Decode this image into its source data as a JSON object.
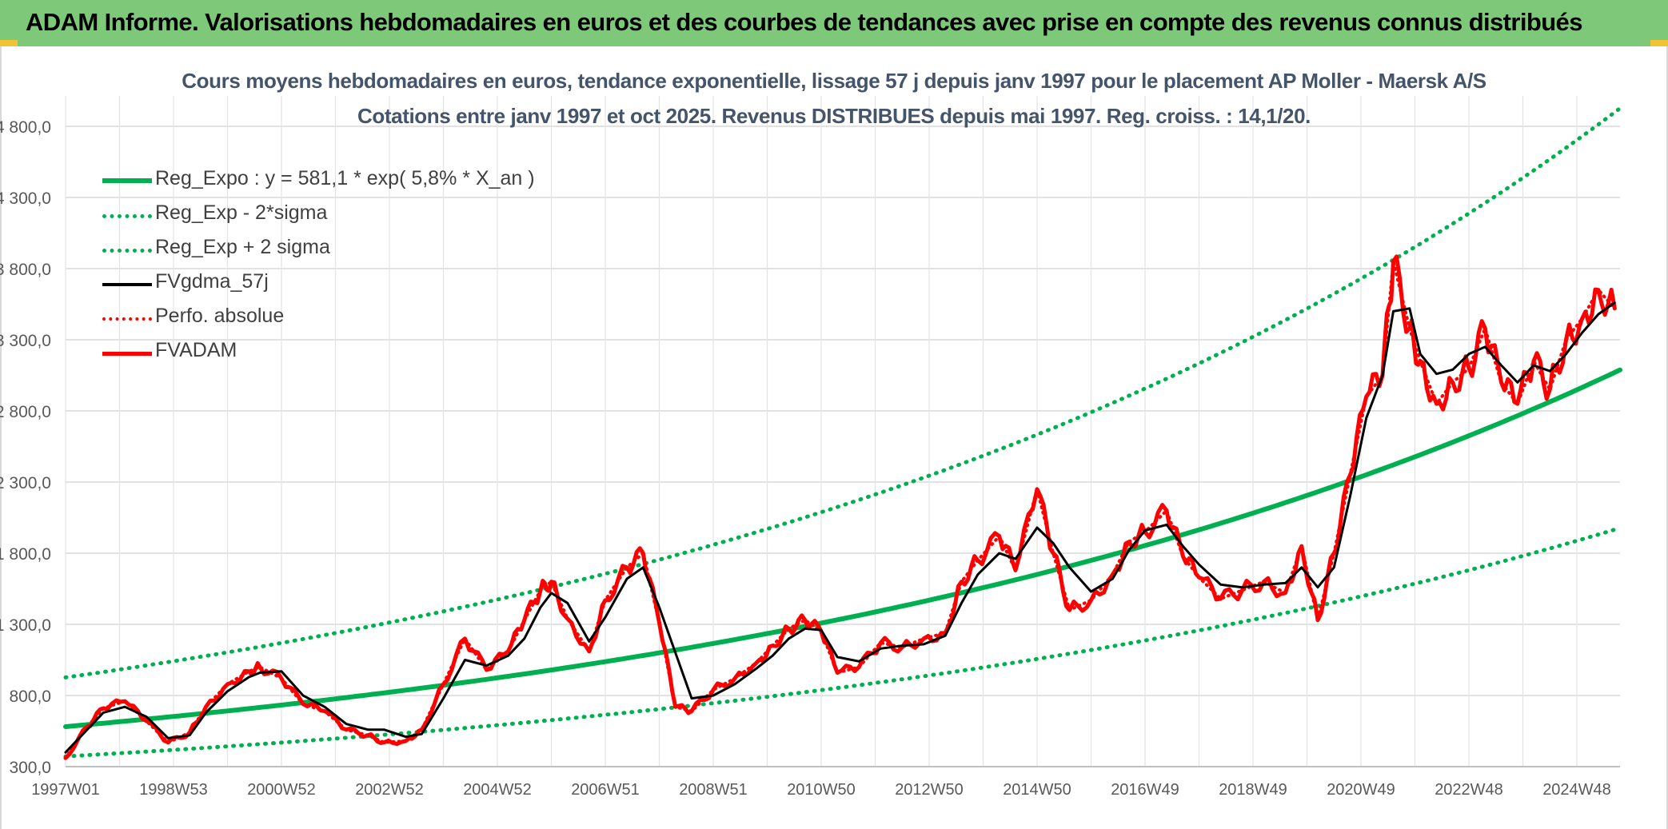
{
  "banner": {
    "title": "ADAM Informe. Valorisations hebdomadaires en euros et des courbes de tendances avec prise en compte des revenus connus distribués"
  },
  "colors": {
    "banner_bg": "#7dc979",
    "trend_green": "#00b050",
    "red": "#ff0000",
    "black": "#000000",
    "grid": "#d9d9d9",
    "title_text": "#44546a"
  },
  "chart_data": {
    "type": "line",
    "title": "Cours moyens hebdomadaires en euros, tendance exponentielle, lissage 57 j depuis janv 1997 pour le placement AP Moller - Maersk A/S",
    "subtitle": "Cotations entre janv 1997 et oct 2025. Revenus DISTRIBUES depuis mai 1997. Reg. croiss. : 14,1/20.",
    "xlabel": "",
    "ylabel": "",
    "xlim": [
      1997.0,
      2025.8
    ],
    "ylim": [
      300,
      5000
    ],
    "grid": true,
    "y_ticks": [
      300,
      800,
      1300,
      1800,
      2300,
      2800,
      3300,
      3800,
      4300,
      4800
    ],
    "y_tick_labels": [
      "300,0",
      "800,0",
      "1 300,0",
      "1 800,0",
      "2 300,0",
      "2 800,0",
      "3 300,0",
      "3 800,0",
      "4 300,0",
      "4 800,0"
    ],
    "x_ticks": [
      1997.0,
      1999.0,
      2001.0,
      2003.0,
      2005.0,
      2007.0,
      2009.0,
      2011.0,
      2013.0,
      2015.0,
      2017.0,
      2019.0,
      2021.0,
      2023.0,
      2025.0
    ],
    "x_tick_labels": [
      "1997W01",
      "1998W53",
      "2000W52",
      "2002W52",
      "2004W52",
      "2006W51",
      "2008W51",
      "2010W50",
      "2012W50",
      "2014W50",
      "2016W49",
      "2018W49",
      "2020W49",
      "2022W48",
      "2024W48"
    ],
    "legend_position": "top-left",
    "legend": [
      {
        "label": "Reg_Expo : y = 581,1 * exp( 5,8% *  X_an )",
        "color": "#00b050",
        "style": "solid",
        "width": 6
      },
      {
        "label": "Reg_Exp - 2*sigma",
        "color": "#00b050",
        "style": "dotted",
        "width": 4
      },
      {
        "label": "Reg_Exp + 2 sigma",
        "color": "#00b050",
        "style": "dotted",
        "width": 4
      },
      {
        "label": "FVgdma_57j",
        "color": "#000000",
        "style": "solid",
        "width": 4
      },
      {
        "label": "Perfo. absolue",
        "color": "#ff0000",
        "style": "dotted",
        "width": 4
      },
      {
        "label": "FVADAM",
        "color": "#ff0000",
        "style": "solid",
        "width": 5
      }
    ],
    "series": [
      {
        "name": "Reg_Expo",
        "model": "exponential",
        "a": 581.1,
        "b": 0.058,
        "x0": 1997.0,
        "x_end": 2025.8
      },
      {
        "name": "Reg_Exp - 2*sigma",
        "model": "exponential",
        "a": 372,
        "b": 0.058,
        "x0": 1997.0,
        "x_end": 2025.8
      },
      {
        "name": "Reg_Exp + 2 sigma",
        "model": "exponential",
        "a": 927,
        "b": 0.058,
        "x0": 1997.0,
        "x_end": 2025.8
      },
      {
        "name": "FVgdma_57j",
        "x": [
          1997.0,
          1997.4,
          1997.7,
          1998.1,
          1998.5,
          1998.9,
          1999.3,
          1999.6,
          2000.0,
          2000.4,
          2000.6,
          2001.0,
          2001.4,
          2001.8,
          2002.2,
          2002.6,
          2002.9,
          2003.3,
          2003.6,
          2004.0,
          2004.4,
          2004.8,
          2005.2,
          2005.5,
          2005.8,
          2006.0,
          2006.3,
          2006.7,
          2007.0,
          2007.4,
          2007.7,
          2008.0,
          2008.3,
          2008.6,
          2009.0,
          2009.4,
          2009.8,
          2010.1,
          2010.4,
          2010.7,
          2011.0,
          2011.3,
          2011.7,
          2012.1,
          2012.5,
          2012.9,
          2013.3,
          2013.6,
          2013.9,
          2014.3,
          2014.6,
          2015.0,
          2015.3,
          2015.6,
          2016.0,
          2016.4,
          2016.7,
          2017.0,
          2017.4,
          2017.7,
          2018.0,
          2018.4,
          2018.8,
          2019.2,
          2019.6,
          2019.9,
          2020.2,
          2020.5,
          2020.8,
          2021.1,
          2021.4,
          2021.6,
          2021.9,
          2022.1,
          2022.4,
          2022.7,
          2023.0,
          2023.3,
          2023.6,
          2023.9,
          2024.2,
          2024.5,
          2024.8,
          2025.1,
          2025.4,
          2025.7
        ],
        "values": [
          400,
          560,
          680,
          720,
          650,
          500,
          520,
          680,
          830,
          930,
          960,
          970,
          800,
          720,
          600,
          560,
          560,
          510,
          530,
          780,
          1050,
          1010,
          1080,
          1200,
          1420,
          1520,
          1450,
          1180,
          1350,
          1620,
          1700,
          1420,
          1100,
          780,
          800,
          880,
          990,
          1080,
          1200,
          1270,
          1260,
          1070,
          1040,
          1130,
          1150,
          1160,
          1220,
          1450,
          1650,
          1800,
          1760,
          1980,
          1870,
          1700,
          1530,
          1620,
          1820,
          1960,
          2000,
          1850,
          1720,
          1580,
          1560,
          1580,
          1590,
          1700,
          1560,
          1700,
          2200,
          2750,
          3050,
          3500,
          3520,
          3200,
          3060,
          3090,
          3200,
          3250,
          3120,
          3000,
          3120,
          3080,
          3200,
          3350,
          3480,
          3560
        ]
      },
      {
        "name": "Perfo. absolue",
        "x": [
          1997.0,
          1997.4,
          1997.7,
          1998.1,
          1998.5,
          1998.9,
          1999.3,
          1999.6,
          2000.0,
          2000.4,
          2000.6,
          2001.0,
          2001.4,
          2001.8,
          2002.2,
          2002.6,
          2002.9,
          2003.3,
          2003.6,
          2004.0,
          2004.4,
          2004.8,
          2005.2,
          2005.5,
          2005.8,
          2006.0,
          2006.3,
          2006.7,
          2007.0,
          2007.4,
          2007.7,
          2008.0,
          2008.3,
          2008.6,
          2009.0,
          2009.4,
          2009.8,
          2010.1,
          2010.4,
          2010.7,
          2011.0,
          2011.3,
          2011.7,
          2012.1,
          2012.5,
          2012.9,
          2013.3,
          2013.6,
          2013.9,
          2014.3,
          2014.6,
          2015.0,
          2015.3,
          2015.6,
          2016.0,
          2016.4,
          2016.7,
          2017.0,
          2017.4,
          2017.7,
          2018.0,
          2018.4,
          2018.8,
          2019.2,
          2019.6,
          2019.9,
          2020.2,
          2020.5,
          2020.8,
          2021.1,
          2021.4,
          2021.6,
          2021.9,
          2022.1,
          2022.4,
          2022.7,
          2023.0,
          2023.3,
          2023.6,
          2023.9,
          2024.2,
          2024.5,
          2024.8,
          2025.1,
          2025.4,
          2025.7
        ],
        "values": [
          360,
          580,
          710,
          760,
          620,
          470,
          540,
          720,
          880,
          970,
          1000,
          920,
          740,
          690,
          560,
          520,
          470,
          480,
          560,
          880,
          1200,
          980,
          1110,
          1330,
          1540,
          1600,
          1340,
          1110,
          1470,
          1700,
          1800,
          1310,
          720,
          690,
          840,
          920,
          1030,
          1150,
          1270,
          1330,
          1250,
          960,
          1000,
          1170,
          1140,
          1200,
          1240,
          1600,
          1750,
          1920,
          1680,
          2250,
          1800,
          1400,
          1470,
          1650,
          1880,
          1950,
          2100,
          1780,
          1630,
          1480,
          1540,
          1600,
          1520,
          1850,
          1330,
          1800,
          2350,
          2900,
          3050,
          3850,
          3380,
          3150,
          2850,
          3000,
          3100,
          3380,
          3000,
          2850,
          3150,
          2950,
          3300,
          3450,
          3650,
          3520
        ]
      },
      {
        "name": "FVADAM",
        "x": [
          1997.0,
          1997.4,
          1997.7,
          1998.1,
          1998.5,
          1998.9,
          1999.3,
          1999.6,
          2000.0,
          2000.4,
          2000.6,
          2001.0,
          2001.4,
          2001.8,
          2002.2,
          2002.6,
          2002.9,
          2003.3,
          2003.6,
          2004.0,
          2004.4,
          2004.8,
          2005.2,
          2005.5,
          2005.8,
          2006.0,
          2006.3,
          2006.7,
          2007.0,
          2007.4,
          2007.7,
          2008.0,
          2008.3,
          2008.6,
          2009.0,
          2009.4,
          2009.8,
          2010.1,
          2010.4,
          2010.7,
          2011.0,
          2011.3,
          2011.7,
          2012.1,
          2012.5,
          2012.9,
          2013.3,
          2013.6,
          2013.9,
          2014.3,
          2014.6,
          2015.0,
          2015.3,
          2015.6,
          2016.0,
          2016.4,
          2016.7,
          2017.0,
          2017.4,
          2017.7,
          2018.0,
          2018.4,
          2018.8,
          2019.2,
          2019.6,
          2019.9,
          2020.2,
          2020.5,
          2020.8,
          2021.1,
          2021.4,
          2021.6,
          2021.9,
          2022.1,
          2022.4,
          2022.7,
          2023.0,
          2023.3,
          2023.6,
          2023.9,
          2024.2,
          2024.5,
          2024.8,
          2025.1,
          2025.4,
          2025.7
        ],
        "values": [
          360,
          580,
          710,
          760,
          620,
          470,
          540,
          720,
          880,
          970,
          1000,
          920,
          740,
          690,
          560,
          520,
          470,
          480,
          560,
          880,
          1200,
          980,
          1110,
          1330,
          1540,
          1600,
          1340,
          1110,
          1470,
          1700,
          1800,
          1310,
          720,
          690,
          840,
          920,
          1030,
          1150,
          1270,
          1330,
          1250,
          960,
          1000,
          1170,
          1140,
          1200,
          1240,
          1600,
          1750,
          1920,
          1680,
          2250,
          1800,
          1400,
          1470,
          1650,
          1880,
          1950,
          2100,
          1780,
          1630,
          1480,
          1540,
          1600,
          1520,
          1850,
          1330,
          1800,
          2350,
          2900,
          3050,
          3850,
          3380,
          3150,
          2850,
          3000,
          3100,
          3380,
          3000,
          2850,
          3150,
          2950,
          3300,
          3450,
          3650,
          3520
        ]
      }
    ]
  }
}
